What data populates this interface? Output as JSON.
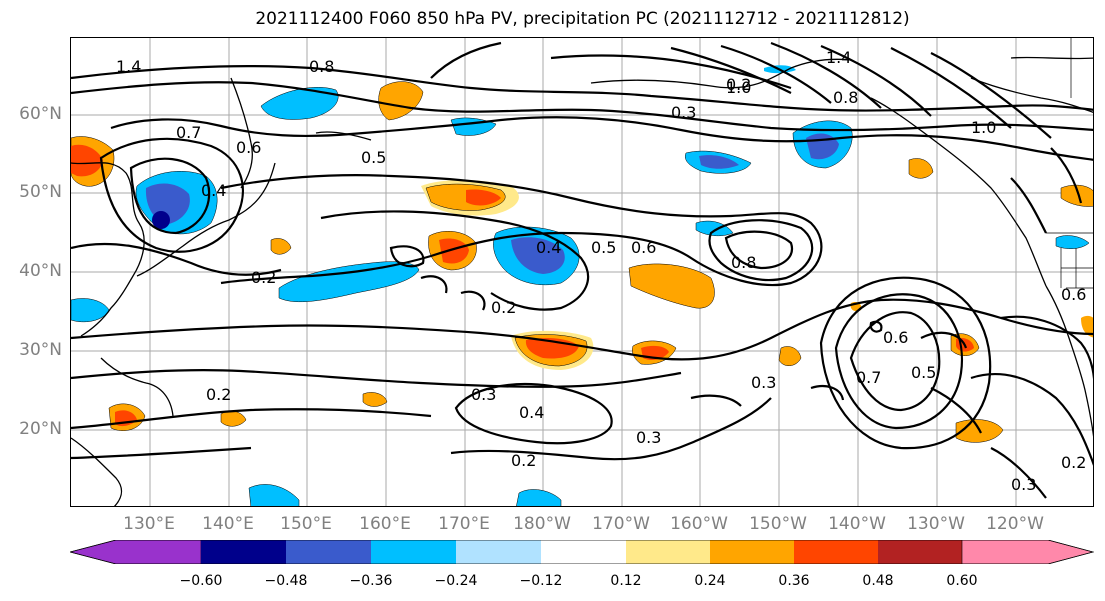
{
  "title": "2021112400 F060 850 hPa PV, precipitation PC (2021112712 - 2021112812)",
  "lat_labels": [
    "60°N",
    "50°N",
    "40°N",
    "30°N",
    "20°N"
  ],
  "lon_labels": [
    "130°E",
    "140°E",
    "150°E",
    "160°E",
    "170°E",
    "180°W",
    "170°W",
    "160°W",
    "150°W",
    "140°W",
    "130°W",
    "120°W"
  ],
  "colorbar": {
    "colors": [
      "#9932cc",
      "#00008b",
      "#3a5bcc",
      "#00bfff",
      "#b0e2ff",
      "#ffffff",
      "#ffe98a",
      "#ffa500",
      "#ff4500",
      "#b22222",
      "#ff88aa"
    ],
    "tick_labels": [
      "−0.60",
      "−0.48",
      "−0.36",
      "−0.24",
      "−0.12",
      "0.12",
      "0.24",
      "0.36",
      "0.48",
      "0.60"
    ]
  },
  "contour_labels": [
    "1.4",
    "0.8",
    "0.7",
    "0.6",
    "0.5",
    "0.4",
    "0.3",
    "0.2",
    "1.0",
    "0.4",
    "0.5",
    "0.6",
    "0.8",
    "0.2",
    "0.2",
    "0.3",
    "0.4",
    "0.3",
    "0.2",
    "0.3",
    "0.2",
    "0.7",
    "0.6",
    "0.5",
    "0.3",
    "0.2",
    "1.4",
    "0.8",
    "1.0",
    "0.6"
  ]
}
